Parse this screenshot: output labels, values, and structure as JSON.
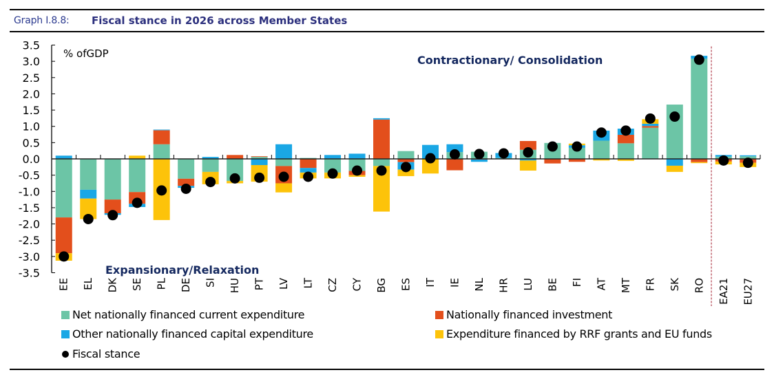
{
  "header": {
    "graph_label": "Graph I.8.8:",
    "graph_title": "Fiscal stance in 2026 across Member States"
  },
  "colors": {
    "current": "#6cc5a6",
    "investment": "#e34f1c",
    "capital": "#1aa7e5",
    "rrf": "#fdc30a",
    "stance": "#000000",
    "annotation": "#14285f",
    "divider": "#b54a57"
  },
  "chart_data": {
    "type": "bar",
    "stacked": true,
    "title": "Fiscal stance in 2026 across Member States",
    "ylabel": "% ofGDP",
    "xlabel": "",
    "ylim": [
      -3.5,
      3.5
    ],
    "yticks": [
      "3.5",
      "3.0",
      "2.5",
      "2.0",
      "1.5",
      "1.0",
      "0.5",
      "0.0",
      "-0.5",
      "-1.0",
      "-1.5",
      "-2.0",
      "-2.5",
      "-3.0",
      "-3.5"
    ],
    "ytick_values": [
      3.5,
      3.0,
      2.5,
      2.0,
      1.5,
      1.0,
      0.5,
      0.0,
      -0.5,
      -1.0,
      -1.5,
      -2.0,
      -2.5,
      -3.0,
      -3.5
    ],
    "grid": false,
    "annotations": {
      "top": "Contractionary/ Consolidation",
      "bottom": "Expansionary/Relaxation"
    },
    "divider_after": "RO",
    "categories": [
      "EE",
      "EL",
      "DK",
      "SE",
      "PL",
      "DE",
      "SI",
      "HU",
      "PT",
      "LV",
      "LT",
      "CZ",
      "CY",
      "BG",
      "ES",
      "IT",
      "IE",
      "NL",
      "HR",
      "LU",
      "BE",
      "FI",
      "AT",
      "MT",
      "FR",
      "SK",
      "RO",
      "EA21",
      "EU27"
    ],
    "series": [
      {
        "name": "Net nationally financed current expenditure",
        "key": "current",
        "values": [
          -1.8,
          -0.95,
          -1.25,
          -1.02,
          0.45,
          -0.61,
          -0.4,
          -0.68,
          0.06,
          -0.22,
          0.03,
          -0.42,
          -0.37,
          -0.22,
          0.24,
          0.0,
          0.21,
          0.22,
          0.03,
          0.28,
          0.49,
          0.34,
          0.56,
          0.48,
          0.96,
          1.67,
          3.08,
          0.07,
          0.08
        ]
      },
      {
        "name": "Nationally financed investment",
        "key": "investment",
        "values": [
          -1.1,
          0.0,
          -0.42,
          -0.36,
          0.43,
          -0.22,
          0.0,
          0.12,
          0.02,
          -0.53,
          -0.28,
          0.0,
          -0.13,
          1.21,
          -0.1,
          0.0,
          -0.35,
          -0.02,
          0.0,
          0.27,
          -0.14,
          -0.09,
          0.0,
          0.26,
          0.05,
          0.0,
          -0.1,
          -0.08,
          -0.12
        ]
      },
      {
        "name": "Other nationally financed capital expenditure",
        "key": "capital",
        "values": [
          0.1,
          -0.27,
          -0.05,
          -0.1,
          0.02,
          -0.06,
          0.06,
          0.0,
          -0.19,
          0.45,
          -0.14,
          0.12,
          0.16,
          0.04,
          -0.23,
          0.43,
          0.24,
          -0.07,
          0.15,
          -0.05,
          0.0,
          0.08,
          0.31,
          0.19,
          0.07,
          -0.21,
          0.09,
          0.05,
          0.03
        ]
      },
      {
        "name": "Expenditure financed by RRF grants and EU funds",
        "key": "rrf",
        "values": [
          -0.23,
          -0.63,
          0.0,
          0.1,
          -1.88,
          0.0,
          -0.38,
          -0.07,
          -0.51,
          -0.28,
          -0.18,
          -0.18,
          -0.05,
          -1.4,
          -0.2,
          -0.45,
          0.0,
          0.0,
          0.0,
          -0.31,
          0.0,
          0.05,
          -0.05,
          -0.06,
          0.14,
          -0.19,
          -0.03,
          -0.09,
          -0.13
        ]
      }
    ],
    "stance": {
      "name": "Fiscal stance",
      "values": [
        -3.0,
        -1.85,
        -1.73,
        -1.35,
        -0.97,
        -0.92,
        -0.71,
        -0.6,
        -0.58,
        -0.55,
        -0.55,
        -0.45,
        -0.36,
        -0.36,
        -0.25,
        0.02,
        0.14,
        0.15,
        0.17,
        0.2,
        0.38,
        0.38,
        0.81,
        0.87,
        1.24,
        1.3,
        3.05,
        -0.05,
        -0.12
      ]
    },
    "legend": [
      {
        "label": "Net nationally financed current expenditure",
        "key": "current",
        "marker": "square"
      },
      {
        "label": "Nationally financed investment",
        "key": "investment",
        "marker": "square"
      },
      {
        "label": "Other nationally financed capital expenditure",
        "key": "capital",
        "marker": "square"
      },
      {
        "label": "Expenditure financed by RRF grants and EU funds",
        "key": "rrf",
        "marker": "square"
      },
      {
        "label": "Fiscal stance",
        "key": "stance",
        "marker": "dot"
      }
    ],
    "legend_position": "bottom"
  }
}
